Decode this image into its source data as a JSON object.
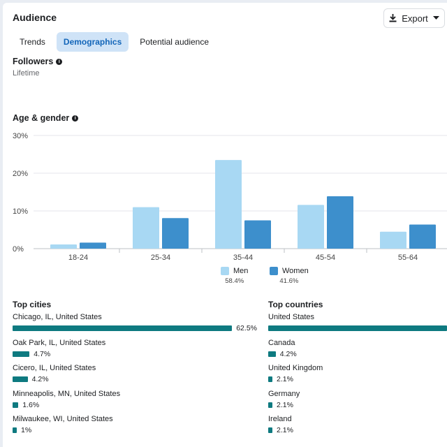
{
  "header": {
    "title": "Audience",
    "export_label": "Export"
  },
  "tabs": [
    {
      "label": "Trends",
      "active": false
    },
    {
      "label": "Demographics",
      "active": true
    },
    {
      "label": "Potential audience",
      "active": false
    }
  ],
  "followers": {
    "title": "Followers",
    "subtitle": "Lifetime"
  },
  "age_gender": {
    "title": "Age & gender"
  },
  "colors": {
    "men": "#a8d8f3",
    "women": "#3d8fcc",
    "bar": "#0e7a80",
    "tab_active": "#cfe3f7"
  },
  "chart_data": {
    "type": "bar",
    "categories": [
      "18-24",
      "25-34",
      "35-44",
      "45-54",
      "55-64"
    ],
    "series": [
      {
        "name": "Men",
        "values": [
          1.1,
          11.0,
          23.5,
          11.6,
          4.5
        ]
      },
      {
        "name": "Women",
        "values": [
          1.6,
          8.1,
          7.5,
          13.9,
          6.4
        ]
      }
    ],
    "y_ticks": [
      "30%",
      "20%",
      "10%",
      "0%"
    ],
    "ylim": [
      0,
      30
    ],
    "grid": true,
    "legend_position": "bottom"
  },
  "legend": {
    "men": {
      "label": "Men",
      "pct": "58.4%"
    },
    "women": {
      "label": "Women",
      "pct": "41.6%"
    }
  },
  "top_cities": {
    "title": "Top cities",
    "items": [
      {
        "label": "Chicago,  IL,  United States",
        "pct": "62.5%",
        "value": 62.5
      },
      {
        "label": "Oak Park,  IL,  United States",
        "pct": "4.7%",
        "value": 4.7
      },
      {
        "label": "Cicero,  IL,  United States",
        "pct": "4.2%",
        "value": 4.2
      },
      {
        "label": "Minneapolis,  MN,  United States",
        "pct": "1.6%",
        "value": 1.6
      },
      {
        "label": "Milwaukee,  WI,  United States",
        "pct": "1%",
        "value": 1
      }
    ]
  },
  "top_countries": {
    "title": "Top countries",
    "items": [
      {
        "label": "United States",
        "pct": "",
        "value": 100
      },
      {
        "label": "Canada",
        "pct": "4.2%",
        "value": 4.2
      },
      {
        "label": "United Kingdom",
        "pct": "2.1%",
        "value": 2.1
      },
      {
        "label": "Germany",
        "pct": "2.1%",
        "value": 2.1
      },
      {
        "label": "Ireland",
        "pct": "2.1%",
        "value": 2.1
      }
    ]
  }
}
